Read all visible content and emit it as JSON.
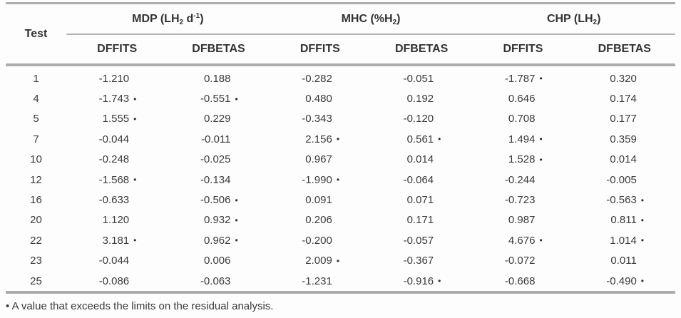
{
  "colors": {
    "rule_gray": "#aaacae",
    "text_dark": "#3a3a3c"
  },
  "table": {
    "test_header": "Test",
    "groups": [
      {
        "p1": "MDP (LH",
        "sub1": "2",
        "p2": " d",
        "sup1": "-1",
        "p3": ")"
      },
      {
        "p1": "MHC (%H",
        "sub1": "2",
        "p2": "",
        "sup1": "",
        "p3": ")"
      },
      {
        "p1": "CHP (LH",
        "sub1": "2",
        "p2": "",
        "sup1": "",
        "p3": ")"
      }
    ],
    "sub_headers": [
      "DFFITS",
      "DFBETAS",
      "DFFITS",
      "DFBETAS",
      "DFFITS",
      "DFBETAS"
    ],
    "marker": "•",
    "rows": [
      {
        "test": "1",
        "cells": [
          {
            "v": "-1.210",
            "m": ""
          },
          {
            "v": "0.188",
            "m": ""
          },
          {
            "v": "-0.282",
            "m": ""
          },
          {
            "v": "-0.051",
            "m": ""
          },
          {
            "v": "-1.787",
            "m": "•"
          },
          {
            "v": "0.320",
            "m": ""
          }
        ]
      },
      {
        "test": "4",
        "cells": [
          {
            "v": "-1.743",
            "m": "•"
          },
          {
            "v": "-0.551",
            "m": "•"
          },
          {
            "v": "0.480",
            "m": ""
          },
          {
            "v": "0.192",
            "m": ""
          },
          {
            "v": "0.646",
            "m": ""
          },
          {
            "v": "0.174",
            "m": ""
          }
        ]
      },
      {
        "test": "5",
        "cells": [
          {
            "v": "1.555",
            "m": "•"
          },
          {
            "v": "0.229",
            "m": ""
          },
          {
            "v": "-0.343",
            "m": ""
          },
          {
            "v": "-0.120",
            "m": ""
          },
          {
            "v": "0.708",
            "m": ""
          },
          {
            "v": "0.177",
            "m": ""
          }
        ]
      },
      {
        "test": "7",
        "cells": [
          {
            "v": "-0.044",
            "m": ""
          },
          {
            "v": "-0.011",
            "m": ""
          },
          {
            "v": "2.156",
            "m": "•"
          },
          {
            "v": "0.561",
            "m": "•"
          },
          {
            "v": "1.494",
            "m": "•"
          },
          {
            "v": "0.359",
            "m": ""
          }
        ]
      },
      {
        "test": "10",
        "cells": [
          {
            "v": "-0.248",
            "m": ""
          },
          {
            "v": "-0.025",
            "m": ""
          },
          {
            "v": "0.967",
            "m": ""
          },
          {
            "v": "0.014",
            "m": ""
          },
          {
            "v": "1.528",
            "m": "•"
          },
          {
            "v": "0.014",
            "m": ""
          }
        ]
      },
      {
        "test": "12",
        "cells": [
          {
            "v": "-1.568",
            "m": "•"
          },
          {
            "v": "-0.134",
            "m": ""
          },
          {
            "v": "-1.990",
            "m": "•"
          },
          {
            "v": "-0.064",
            "m": ""
          },
          {
            "v": "-0.244",
            "m": ""
          },
          {
            "v": "-0.005",
            "m": ""
          }
        ]
      },
      {
        "test": "16",
        "cells": [
          {
            "v": "-0.633",
            "m": ""
          },
          {
            "v": "-0.506",
            "m": "•"
          },
          {
            "v": "0.091",
            "m": ""
          },
          {
            "v": "0.071",
            "m": ""
          },
          {
            "v": "-0.723",
            "m": ""
          },
          {
            "v": "-0.563",
            "m": "•"
          }
        ]
      },
      {
        "test": "20",
        "cells": [
          {
            "v": "1.120",
            "m": ""
          },
          {
            "v": "0.932",
            "m": "•"
          },
          {
            "v": "0.206",
            "m": ""
          },
          {
            "v": "0.171",
            "m": ""
          },
          {
            "v": "0.987",
            "m": ""
          },
          {
            "v": "0.811",
            "m": "•"
          }
        ]
      },
      {
        "test": "22",
        "cells": [
          {
            "v": "3.181",
            "m": "•"
          },
          {
            "v": "0.962",
            "m": "•"
          },
          {
            "v": "-0.200",
            "m": ""
          },
          {
            "v": "-0.057",
            "m": ""
          },
          {
            "v": "4.676",
            "m": "•"
          },
          {
            "v": "1.014",
            "m": "•"
          }
        ]
      },
      {
        "test": "23",
        "cells": [
          {
            "v": "-0.044",
            "m": ""
          },
          {
            "v": "0.006",
            "m": ""
          },
          {
            "v": "2.009",
            "m": "•"
          },
          {
            "v": "-0.367",
            "m": ""
          },
          {
            "v": "-0.072",
            "m": ""
          },
          {
            "v": "0.011",
            "m": ""
          }
        ]
      },
      {
        "test": "25",
        "cells": [
          {
            "v": "-0.086",
            "m": ""
          },
          {
            "v": "-0.063",
            "m": ""
          },
          {
            "v": "-1.231",
            "m": ""
          },
          {
            "v": "-0.916",
            "m": "•"
          },
          {
            "v": "-0.668",
            "m": ""
          },
          {
            "v": "-0.490",
            "m": "•"
          }
        ]
      }
    ],
    "footnote": "• A value that exceeds the limits on the residual analysis."
  },
  "chart_data": {
    "type": "table",
    "title": "",
    "column_groups": [
      "MDP (LH2 d-1)",
      "MHC (%H2)",
      "CHP (LH2)"
    ],
    "columns": [
      "Test",
      "MDP DFFITS",
      "MDP DFBETAS",
      "MHC DFFITS",
      "MHC DFBETAS",
      "CHP DFFITS",
      "CHP DFBETAS"
    ],
    "rows": [
      {
        "test": 1,
        "values": [
          -1.21,
          0.188,
          -0.282,
          -0.051,
          -1.787,
          0.32
        ],
        "flagged": [
          false,
          false,
          false,
          false,
          true,
          false
        ]
      },
      {
        "test": 4,
        "values": [
          -1.743,
          -0.551,
          0.48,
          0.192,
          0.646,
          0.174
        ],
        "flagged": [
          true,
          true,
          false,
          false,
          false,
          false
        ]
      },
      {
        "test": 5,
        "values": [
          1.555,
          0.229,
          -0.343,
          -0.12,
          0.708,
          0.177
        ],
        "flagged": [
          true,
          false,
          false,
          false,
          false,
          false
        ]
      },
      {
        "test": 7,
        "values": [
          -0.044,
          -0.011,
          2.156,
          0.561,
          1.494,
          0.359
        ],
        "flagged": [
          false,
          false,
          true,
          true,
          true,
          false
        ]
      },
      {
        "test": 10,
        "values": [
          -0.248,
          -0.025,
          0.967,
          0.014,
          1.528,
          0.014
        ],
        "flagged": [
          false,
          false,
          false,
          false,
          true,
          false
        ]
      },
      {
        "test": 12,
        "values": [
          -1.568,
          -0.134,
          -1.99,
          -0.064,
          -0.244,
          -0.005
        ],
        "flagged": [
          true,
          false,
          true,
          false,
          false,
          false
        ]
      },
      {
        "test": 16,
        "values": [
          -0.633,
          -0.506,
          0.091,
          0.071,
          -0.723,
          -0.563
        ],
        "flagged": [
          false,
          true,
          false,
          false,
          false,
          true
        ]
      },
      {
        "test": 20,
        "values": [
          1.12,
          0.932,
          0.206,
          0.171,
          0.987,
          0.811
        ],
        "flagged": [
          false,
          true,
          false,
          false,
          false,
          true
        ]
      },
      {
        "test": 22,
        "values": [
          3.181,
          0.962,
          -0.2,
          -0.057,
          4.676,
          1.014
        ],
        "flagged": [
          true,
          true,
          false,
          false,
          true,
          true
        ]
      },
      {
        "test": 23,
        "values": [
          -0.044,
          0.006,
          2.009,
          -0.367,
          -0.072,
          0.011
        ],
        "flagged": [
          false,
          false,
          true,
          false,
          false,
          false
        ]
      },
      {
        "test": 25,
        "values": [
          -0.086,
          -0.063,
          -1.231,
          -0.916,
          -0.668,
          -0.49
        ],
        "flagged": [
          false,
          false,
          false,
          true,
          false,
          true
        ]
      }
    ],
    "footnote": "• A value that exceeds the limits on the residual analysis."
  }
}
